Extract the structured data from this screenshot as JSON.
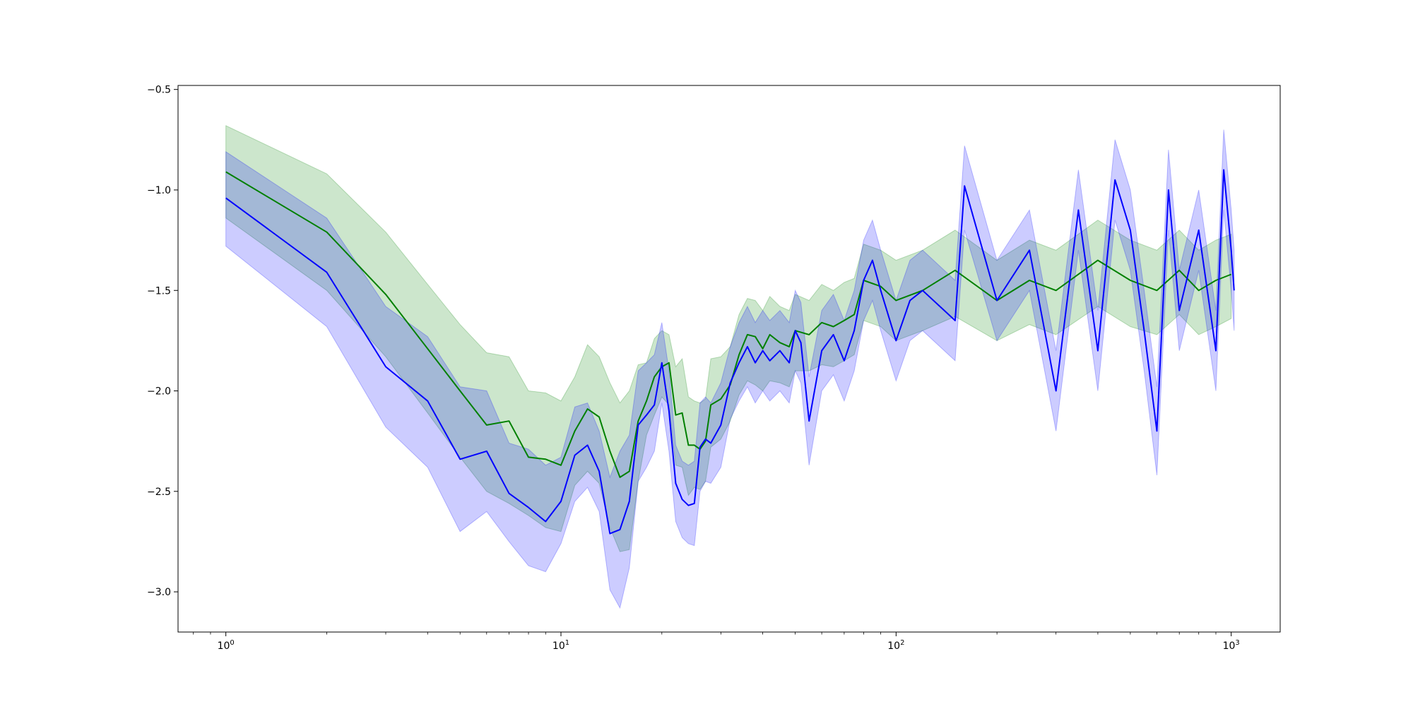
{
  "chart_data": {
    "type": "line",
    "title": "",
    "xlabel": "",
    "ylabel": "",
    "x_scale": "log",
    "xlim": [
      0.72,
      1400
    ],
    "ylim": [
      -3.2,
      -0.48
    ],
    "grid": false,
    "legend": "none",
    "x_ticks": [
      {
        "value": 1,
        "base": "10",
        "exp": "0"
      },
      {
        "value": 10,
        "base": "10",
        "exp": "1"
      },
      {
        "value": 100,
        "base": "10",
        "exp": "2"
      },
      {
        "value": 1000,
        "base": "10",
        "exp": "3"
      }
    ],
    "y_ticks": [
      {
        "value": -3.0,
        "label": "−3.0"
      },
      {
        "value": -2.5,
        "label": "−2.5"
      },
      {
        "value": -2.0,
        "label": "−2.0"
      },
      {
        "value": -1.5,
        "label": "−1.5"
      },
      {
        "value": -1.0,
        "label": "−1.0"
      },
      {
        "value": -0.5,
        "label": "−0.5"
      }
    ],
    "series": [
      {
        "color": "#008000",
        "band_color": "#008000",
        "band_opacity": 0.2,
        "x": [
          1,
          2,
          3,
          4,
          5,
          6,
          7,
          8,
          9,
          10,
          11,
          12,
          13,
          14,
          15,
          16,
          17,
          18,
          19,
          20,
          21,
          22,
          23,
          24,
          25,
          26,
          27,
          28,
          30,
          32,
          34,
          36,
          38,
          40,
          42,
          45,
          48,
          50,
          55,
          60,
          65,
          70,
          75,
          80,
          90,
          100,
          120,
          150,
          200,
          250,
          300,
          400,
          500,
          600,
          700,
          800,
          900,
          1000
        ],
        "y": [
          -0.91,
          -1.21,
          -1.52,
          -1.79,
          -2.0,
          -2.17,
          -2.15,
          -2.33,
          -2.34,
          -2.37,
          -2.2,
          -2.09,
          -2.13,
          -2.3,
          -2.43,
          -2.4,
          -2.15,
          -2.05,
          -1.93,
          -1.88,
          -1.86,
          -2.12,
          -2.11,
          -2.27,
          -2.27,
          -2.29,
          -2.25,
          -2.07,
          -2.04,
          -1.97,
          -1.82,
          -1.72,
          -1.73,
          -1.79,
          -1.72,
          -1.76,
          -1.78,
          -1.7,
          -1.72,
          -1.66,
          -1.68,
          -1.65,
          -1.62,
          -1.45,
          -1.48,
          -1.55,
          -1.5,
          -1.4,
          -1.55,
          -1.45,
          -1.5,
          -1.35,
          -1.45,
          -1.5,
          -1.4,
          -1.5,
          -1.45,
          -1.42
        ],
        "y_low": [
          -1.14,
          -1.5,
          -1.83,
          -2.11,
          -2.33,
          -2.5,
          -2.56,
          -2.62,
          -2.68,
          -2.7,
          -2.47,
          -2.4,
          -2.46,
          -2.68,
          -2.8,
          -2.79,
          -2.45,
          -2.22,
          -2.12,
          -2.03,
          -2.07,
          -2.37,
          -2.38,
          -2.52,
          -2.48,
          -2.49,
          -2.45,
          -2.28,
          -2.24,
          -2.15,
          -2.02,
          -1.95,
          -1.97,
          -2.0,
          -1.95,
          -1.96,
          -1.98,
          -1.9,
          -1.9,
          -1.87,
          -1.88,
          -1.85,
          -1.82,
          -1.65,
          -1.68,
          -1.75,
          -1.7,
          -1.63,
          -1.75,
          -1.67,
          -1.72,
          -1.58,
          -1.68,
          -1.72,
          -1.62,
          -1.72,
          -1.68,
          -1.64
        ],
        "y_high": [
          -0.68,
          -0.92,
          -1.21,
          -1.47,
          -1.67,
          -1.81,
          -1.83,
          -2.0,
          -2.01,
          -2.05,
          -1.93,
          -1.77,
          -1.83,
          -1.96,
          -2.06,
          -2.0,
          -1.87,
          -1.86,
          -1.74,
          -1.7,
          -1.72,
          -1.88,
          -1.84,
          -2.03,
          -2.05,
          -2.06,
          -2.04,
          -1.84,
          -1.83,
          -1.78,
          -1.62,
          -1.54,
          -1.55,
          -1.6,
          -1.53,
          -1.58,
          -1.6,
          -1.52,
          -1.55,
          -1.47,
          -1.5,
          -1.46,
          -1.44,
          -1.27,
          -1.3,
          -1.35,
          -1.3,
          -1.2,
          -1.35,
          -1.25,
          -1.3,
          -1.15,
          -1.25,
          -1.3,
          -1.2,
          -1.3,
          -1.25,
          -1.22
        ]
      },
      {
        "color": "#0000ff",
        "band_color": "#0000ff",
        "band_opacity": 0.2,
        "x": [
          1,
          2,
          3,
          4,
          5,
          6,
          7,
          8,
          9,
          10,
          11,
          12,
          13,
          14,
          15,
          16,
          17,
          18,
          19,
          20,
          21,
          22,
          23,
          24,
          25,
          26,
          27,
          28,
          30,
          32,
          34,
          36,
          38,
          40,
          42,
          45,
          48,
          50,
          52,
          55,
          60,
          65,
          70,
          75,
          80,
          85,
          90,
          100,
          110,
          120,
          150,
          160,
          200,
          250,
          300,
          350,
          400,
          450,
          500,
          550,
          600,
          650,
          700,
          800,
          900,
          950,
          1000,
          1020
        ],
        "y": [
          -1.04,
          -1.41,
          -1.88,
          -2.05,
          -2.34,
          -2.3,
          -2.51,
          -2.58,
          -2.65,
          -2.55,
          -2.32,
          -2.27,
          -2.4,
          -2.71,
          -2.69,
          -2.55,
          -2.17,
          -2.12,
          -2.07,
          -1.86,
          -2.1,
          -2.46,
          -2.54,
          -2.57,
          -2.56,
          -2.28,
          -2.24,
          -2.26,
          -2.17,
          -1.96,
          -1.86,
          -1.78,
          -1.86,
          -1.8,
          -1.85,
          -1.8,
          -1.86,
          -1.7,
          -1.76,
          -2.15,
          -1.8,
          -1.72,
          -1.85,
          -1.7,
          -1.45,
          -1.35,
          -1.5,
          -1.75,
          -1.55,
          -1.5,
          -1.65,
          -0.98,
          -1.55,
          -1.3,
          -2.0,
          -1.1,
          -1.8,
          -0.95,
          -1.2,
          -1.7,
          -2.2,
          -1.0,
          -1.6,
          -1.2,
          -1.8,
          -0.9,
          -1.3,
          -1.5
        ],
        "y_low": [
          -1.28,
          -1.68,
          -2.18,
          -2.38,
          -2.7,
          -2.6,
          -2.75,
          -2.87,
          -2.9,
          -2.76,
          -2.55,
          -2.48,
          -2.6,
          -2.99,
          -3.08,
          -2.88,
          -2.45,
          -2.38,
          -2.3,
          -2.06,
          -2.3,
          -2.65,
          -2.73,
          -2.76,
          -2.77,
          -2.5,
          -2.45,
          -2.46,
          -2.38,
          -2.14,
          -2.05,
          -1.98,
          -2.06,
          -2.0,
          -2.05,
          -2.0,
          -2.06,
          -1.9,
          -1.96,
          -2.37,
          -2.0,
          -1.92,
          -2.05,
          -1.9,
          -1.65,
          -1.55,
          -1.7,
          -1.95,
          -1.75,
          -1.7,
          -1.85,
          -1.2,
          -1.75,
          -1.5,
          -2.2,
          -1.3,
          -2.0,
          -1.15,
          -1.4,
          -1.9,
          -2.42,
          -1.2,
          -1.8,
          -1.4,
          -2.0,
          -1.1,
          -1.5,
          -1.7
        ],
        "y_high": [
          -0.81,
          -1.14,
          -1.58,
          -1.73,
          -1.98,
          -2.0,
          -2.26,
          -2.29,
          -2.37,
          -2.33,
          -2.08,
          -2.06,
          -2.2,
          -2.43,
          -2.3,
          -2.22,
          -1.9,
          -1.86,
          -1.82,
          -1.66,
          -1.9,
          -2.27,
          -2.35,
          -2.37,
          -2.35,
          -2.06,
          -2.03,
          -2.06,
          -1.96,
          -1.78,
          -1.66,
          -1.58,
          -1.66,
          -1.6,
          -1.65,
          -1.6,
          -1.66,
          -1.5,
          -1.56,
          -1.93,
          -1.6,
          -1.52,
          -1.65,
          -1.5,
          -1.25,
          -1.15,
          -1.3,
          -1.55,
          -1.35,
          -1.3,
          -1.45,
          -0.78,
          -1.35,
          -1.1,
          -1.8,
          -0.9,
          -1.6,
          -0.75,
          -1.0,
          -1.5,
          -1.98,
          -0.8,
          -1.4,
          -1.0,
          -1.6,
          -0.7,
          -1.1,
          -1.3
        ]
      }
    ]
  }
}
